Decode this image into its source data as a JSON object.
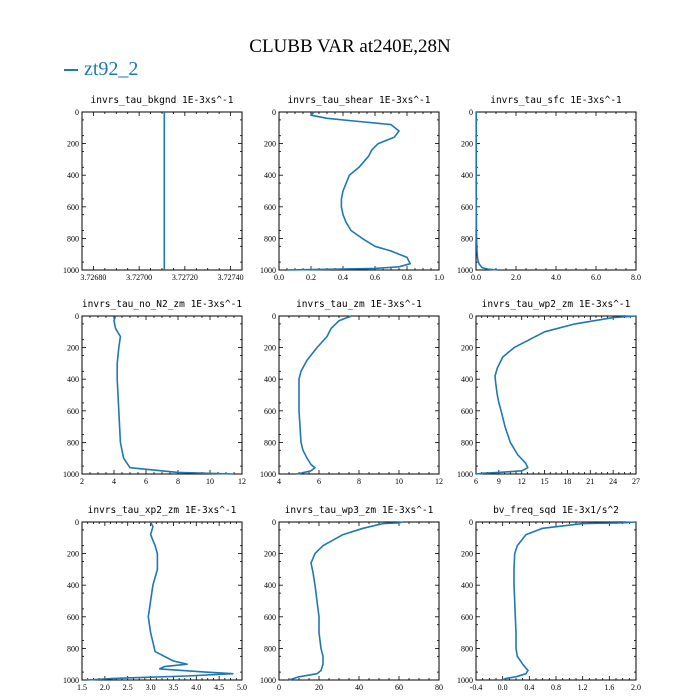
{
  "title": "CLUBB VAR at240E,28N",
  "legend": {
    "label": "zt92_2",
    "color": "#1f77b4"
  },
  "chart_data": [
    {
      "type": "line",
      "title": "invrs_tau_bkgnd   1E-3xs^-1",
      "xticks": [
        "3.72680",
        "3.72700",
        "3.72720",
        "3.72740"
      ],
      "xlim": [
        3.72675,
        3.72745
      ],
      "ylim": [
        1000,
        0
      ],
      "yticks": [
        "0",
        "200",
        "400",
        "600",
        "800",
        "1000"
      ],
      "series": [
        {
          "x": [
            3.72711,
            3.72711
          ],
          "y": [
            0,
            1000
          ]
        }
      ]
    },
    {
      "type": "line",
      "title": "invrs_tau_shear   1E-3xs^-1",
      "xticks": [
        "0.0",
        "0.2",
        "0.4",
        "0.6",
        "0.8",
        "1.0"
      ],
      "xlim": [
        0,
        1
      ],
      "ylim": [
        1000,
        0
      ],
      "yticks": [
        "0",
        "200",
        "400",
        "600",
        "800",
        "1000"
      ],
      "series": [
        {
          "x": [
            0.22,
            0.2,
            0.3,
            0.5,
            0.7,
            0.75,
            0.72,
            0.62,
            0.58,
            0.56,
            0.5,
            0.44,
            0.42,
            0.4,
            0.39,
            0.39,
            0.4,
            0.42,
            0.45,
            0.52,
            0.6,
            0.7,
            0.8,
            0.82,
            0.75,
            0.6,
            0.35,
            0.15,
            0.05
          ],
          "y": [
            0,
            20,
            40,
            60,
            80,
            120,
            160,
            200,
            240,
            280,
            350,
            400,
            450,
            500,
            550,
            600,
            650,
            700,
            750,
            800,
            850,
            880,
            920,
            960,
            980,
            990,
            995,
            998,
            1000
          ]
        }
      ]
    },
    {
      "type": "line",
      "title": "invrs_tau_sfc   1E-3xs^-1",
      "xticks": [
        "0.0",
        "2.0",
        "4.0",
        "6.0",
        "8.0"
      ],
      "xlim": [
        0,
        8
      ],
      "ylim": [
        1000,
        0
      ],
      "yticks": [
        "0",
        "200",
        "400",
        "600",
        "800",
        "1000"
      ],
      "series": [
        {
          "x": [
            0.01,
            0.01,
            0.02,
            0.03,
            0.05,
            0.08,
            0.15,
            0.3,
            0.6,
            1.1
          ],
          "y": [
            0,
            500,
            700,
            800,
            880,
            930,
            960,
            985,
            995,
            1000
          ]
        }
      ]
    },
    {
      "type": "line",
      "title": "invrs_tau_no_N2_zm   1E-3xs^-1",
      "xticks": [
        "2",
        "4",
        "6",
        "8",
        "10",
        "12"
      ],
      "xlim": [
        2,
        12
      ],
      "ylim": [
        1000,
        0
      ],
      "yticks": [
        "0",
        "200",
        "400",
        "600",
        "800",
        "1000"
      ],
      "series": [
        {
          "x": [
            4.1,
            4.0,
            4.1,
            4.4,
            4.3,
            4.2,
            4.2,
            4.25,
            4.3,
            4.35,
            4.4,
            4.6,
            5.0,
            8.0,
            11.5
          ],
          "y": [
            0,
            30,
            80,
            130,
            200,
            300,
            400,
            500,
            600,
            700,
            800,
            900,
            960,
            990,
            1000
          ]
        }
      ]
    },
    {
      "type": "line",
      "title": "invrs_tau_zm   1E-3xs^-1",
      "xticks": [
        "4",
        "6",
        "8",
        "10",
        "12"
      ],
      "xlim": [
        4,
        12
      ],
      "ylim": [
        1000,
        0
      ],
      "yticks": [
        "0",
        "200",
        "400",
        "600",
        "800",
        "1000"
      ],
      "series": [
        {
          "x": [
            7.6,
            7.0,
            6.6,
            6.4,
            5.9,
            5.4,
            5.1,
            5.0,
            5.0,
            5.0,
            5.05,
            5.1,
            5.2,
            5.4,
            5.6,
            5.8,
            5.6,
            5.1,
            4.9
          ],
          "y": [
            0,
            30,
            80,
            130,
            200,
            280,
            350,
            400,
            500,
            600,
            700,
            800,
            850,
            900,
            940,
            960,
            980,
            995,
            1000
          ]
        }
      ]
    },
    {
      "type": "line",
      "title": "invrs_tau_wp2_zm   1E-3xs^-1",
      "xticks": [
        "6",
        "9",
        "12",
        "15",
        "18",
        "21",
        "24",
        "27"
      ],
      "xlim": [
        6,
        27
      ],
      "ylim": [
        1000,
        0
      ],
      "yticks": [
        "0",
        "200",
        "400",
        "600",
        "800",
        "1000"
      ],
      "series": [
        {
          "x": [
            27,
            24,
            19,
            15,
            11,
            9.5,
            8.8,
            8.5,
            8.6,
            8.8,
            9.0,
            9.3,
            9.8,
            10.5,
            11.5,
            12.5,
            12.8,
            12.0,
            9.0,
            7.0,
            6.0
          ],
          "y": [
            0,
            10,
            50,
            100,
            200,
            260,
            330,
            380,
            430,
            500,
            550,
            600,
            700,
            800,
            880,
            930,
            960,
            980,
            990,
            995,
            1000
          ]
        }
      ]
    },
    {
      "type": "line",
      "title": "invrs_tau_xp2_zm   1E-3xs^-1",
      "xticks": [
        "1.5",
        "2.0",
        "2.5",
        "3.0",
        "3.5",
        "4.0",
        "4.5",
        "5.0"
      ],
      "xlim": [
        1.5,
        5.0
      ],
      "ylim": [
        1000,
        0
      ],
      "yticks": [
        "0",
        "200",
        "400",
        "600",
        "800",
        "1000"
      ],
      "series": [
        {
          "x": [
            3.0,
            3.05,
            3.0,
            3.1,
            3.15,
            3.15,
            3.05,
            3.0,
            2.95,
            3.0,
            3.05,
            3.1,
            3.5,
            3.8,
            3.3,
            3.2,
            4.2,
            4.8,
            3.8,
            2.2,
            1.6
          ],
          "y": [
            0,
            30,
            80,
            150,
            200,
            300,
            400,
            500,
            600,
            700,
            760,
            820,
            880,
            900,
            915,
            930,
            950,
            960,
            975,
            990,
            1000
          ]
        }
      ]
    },
    {
      "type": "line",
      "title": "invrs_tau_wp3_zm   1E-3xs^-1",
      "xticks": [
        "0",
        "20",
        "40",
        "60",
        "80"
      ],
      "xlim": [
        0,
        80
      ],
      "ylim": [
        1000,
        0
      ],
      "yticks": [
        "0",
        "200",
        "400",
        "600",
        "800",
        "1000"
      ],
      "series": [
        {
          "x": [
            62,
            60,
            52,
            42,
            32,
            22,
            18,
            16,
            17,
            18,
            19,
            20,
            20,
            21,
            22,
            22,
            21,
            19,
            10,
            5
          ],
          "y": [
            0,
            5,
            10,
            40,
            80,
            150,
            200,
            260,
            320,
            400,
            500,
            600,
            700,
            800,
            850,
            900,
            940,
            960,
            980,
            1000
          ]
        }
      ]
    },
    {
      "type": "line",
      "title": "bv_freq_sqd   1E-3x1/s^2",
      "xticks": [
        "-0.4",
        "0.0",
        "0.4",
        "0.8",
        "1.2",
        "1.6",
        "2.0"
      ],
      "xlim": [
        -0.4,
        2.0
      ],
      "ylim": [
        1000,
        0
      ],
      "yticks": [
        "0",
        "200",
        "400",
        "600",
        "800",
        "1000"
      ],
      "series": [
        {
          "x": [
            2.0,
            1.8,
            1.2,
            0.6,
            0.35,
            0.22,
            0.18,
            0.17,
            0.17,
            0.18,
            0.19,
            0.2,
            0.2,
            0.22,
            0.3,
            0.38,
            0.35,
            0.2,
            0.05,
            0.0
          ],
          "y": [
            0,
            5,
            10,
            40,
            80,
            150,
            200,
            300,
            400,
            500,
            600,
            700,
            800,
            850,
            900,
            940,
            960,
            980,
            990,
            1000
          ]
        }
      ]
    }
  ]
}
